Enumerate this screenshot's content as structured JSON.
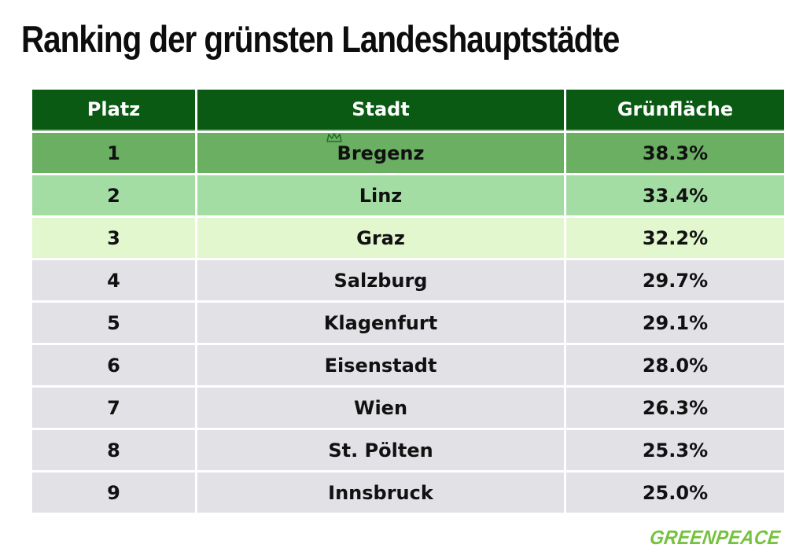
{
  "title": "Ranking der grünsten Landeshauptstädte",
  "brand": "GREENPEACE",
  "colors": {
    "header_bg": "#0a5a14",
    "row_1": "#6aaf62",
    "row_2": "#a3dda3",
    "row_3": "#e3f7cf",
    "row_default": "#e1e1e6",
    "brand_green": "#74c23d"
  },
  "chart_data": {
    "type": "table",
    "columns": [
      "Platz",
      "Stadt",
      "Grünfläche"
    ],
    "rows": [
      [
        "1",
        "Bregenz",
        "38.3%"
      ],
      [
        "2",
        "Linz",
        "33.4%"
      ],
      [
        "3",
        "Graz",
        "32.2%"
      ],
      [
        "4",
        "Salzburg",
        "29.7%"
      ],
      [
        "5",
        "Klagenfurt",
        "29.1%"
      ],
      [
        "6",
        "Eisenstadt",
        "28.0%"
      ],
      [
        "7",
        "Wien",
        "26.3%"
      ],
      [
        "8",
        "St. Pölten",
        "25.3%"
      ],
      [
        "9",
        "Innsbruck",
        "25.0%"
      ]
    ],
    "values": [
      38.3,
      33.4,
      32.2,
      29.7,
      29.1,
      28.0,
      26.3,
      25.3,
      25.0
    ]
  }
}
